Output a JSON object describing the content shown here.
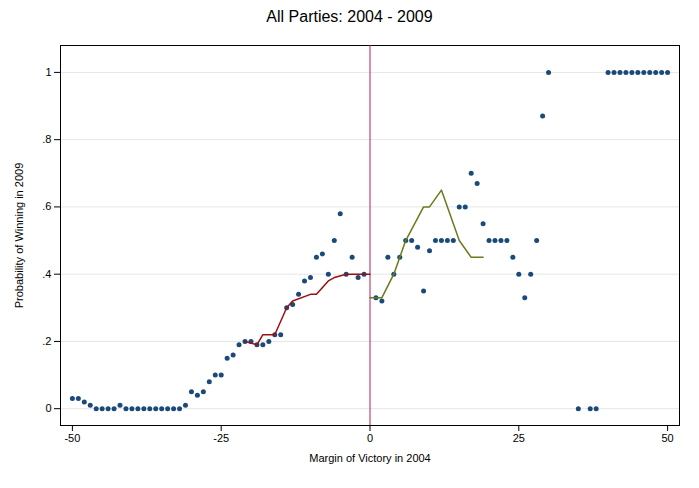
{
  "chart_data": {
    "type": "scatter",
    "title": "All Parties: 2004 - 2009",
    "xlabel": "Margin of Victory in 2004",
    "ylabel": "Probability of Winning in 2009",
    "xlim": [
      -52,
      52
    ],
    "ylim": [
      -0.05,
      1.08
    ],
    "xticks": [
      -50,
      -25,
      0,
      25,
      50
    ],
    "yticks": [
      0,
      {
        "value": 0.2,
        "label": ".2"
      },
      {
        "value": 0.4,
        "label": ".4"
      },
      {
        "value": 0.6,
        "label": ".6"
      },
      {
        "value": 0.8,
        "label": ".8"
      },
      1
    ],
    "grid": "y",
    "series": [
      {
        "type": "scatter",
        "color": "#1a4a7a",
        "x": [
          -50,
          -49,
          -48,
          -47,
          -46,
          -45,
          -44,
          -43,
          -42,
          -41,
          -40,
          -39,
          -38,
          -37,
          -36,
          -35,
          -34,
          -33,
          -32,
          -31,
          -30,
          -29,
          -28,
          -27,
          -26,
          -25,
          -24,
          -23,
          -22,
          -21,
          -20,
          -19,
          -18,
          -17,
          -16,
          -15,
          -14,
          -13,
          -12,
          -11,
          -10,
          -9,
          -8,
          -7,
          -6,
          -5,
          -4,
          -3,
          -2,
          -1,
          1,
          2,
          3,
          4,
          5,
          6,
          7,
          8,
          9,
          10,
          11,
          12,
          13,
          14,
          15,
          16,
          17,
          18,
          19,
          20,
          21,
          22,
          23,
          24,
          25,
          26,
          27,
          28,
          29,
          30,
          35,
          37,
          38,
          40,
          41,
          42,
          43,
          44,
          45,
          46,
          47,
          48,
          49,
          50
        ],
        "values": [
          0.03,
          0.03,
          0.02,
          0.01,
          0.0,
          0.0,
          0.0,
          0.0,
          0.01,
          0.0,
          0.0,
          0.0,
          0.0,
          0.0,
          0.0,
          0.0,
          0.0,
          0.0,
          0.0,
          0.01,
          0.05,
          0.04,
          0.05,
          0.08,
          0.1,
          0.1,
          0.15,
          0.16,
          0.19,
          0.2,
          0.2,
          0.19,
          0.19,
          0.2,
          0.22,
          0.22,
          0.3,
          0.31,
          0.34,
          0.38,
          0.39,
          0.45,
          0.46,
          0.4,
          0.5,
          0.58,
          0.4,
          0.45,
          0.39,
          0.4,
          0.33,
          0.32,
          0.45,
          0.4,
          0.45,
          0.5,
          0.5,
          0.48,
          0.35,
          0.47,
          0.5,
          0.5,
          0.5,
          0.5,
          0.6,
          0.6,
          0.7,
          0.67,
          0.55,
          0.5,
          0.5,
          0.5,
          0.5,
          0.45,
          0.4,
          0.33,
          0.4,
          0.5,
          0.87,
          1.0,
          0.0,
          0.0,
          0.0,
          1.0,
          1.0,
          1.0,
          1.0,
          1.0,
          1.0,
          1.0,
          1.0,
          1.0,
          1.0,
          1.0
        ]
      },
      {
        "type": "vline",
        "color": "#b22060",
        "x": [
          0
        ]
      },
      {
        "type": "line",
        "color": "#991111",
        "x": [
          -21,
          -19,
          -18,
          -16,
          -14,
          -13,
          -10,
          -9,
          -7,
          -6,
          -4,
          -3,
          -1,
          0
        ],
        "values": [
          0.2,
          0.19,
          0.22,
          0.22,
          0.3,
          0.32,
          0.34,
          0.34,
          0.38,
          0.39,
          0.4,
          0.4,
          0.4,
          0.4
        ]
      },
      {
        "type": "line",
        "color": "#6b7a1a",
        "x": [
          0,
          2,
          4,
          6,
          9,
          10,
          12,
          15,
          17,
          19
        ],
        "values": [
          0.33,
          0.33,
          0.4,
          0.5,
          0.6,
          0.6,
          0.65,
          0.5,
          0.45,
          0.45
        ]
      }
    ]
  }
}
